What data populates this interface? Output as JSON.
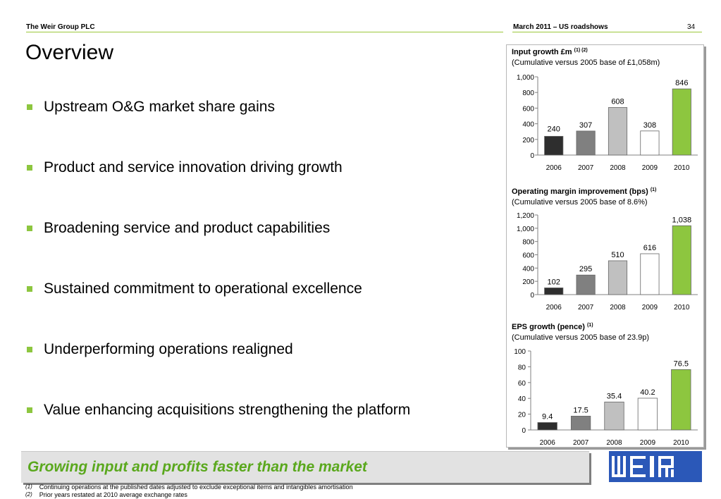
{
  "header": {
    "company": "The Weir Group PLC",
    "event": "March 2011 – US roadshows",
    "page_number": "34"
  },
  "title": "Overview",
  "bullets": [
    "Upstream O&G market share gains",
    "Product and service innovation driving growth",
    "Broadening service and product capabilities",
    "Sustained commitment to operational excellence",
    "Underperforming operations realigned",
    "Value enhancing acquisitions strengthening the platform"
  ],
  "banner": "Growing input and profits faster than the market",
  "footnotes": [
    {
      "marker": "(1)",
      "text": "Continuing operations at the published dates adjusted to exclude exceptional items and intangibles amortisation"
    },
    {
      "marker": "(2)",
      "text": "Prior years restated at 2010 average exchange rates"
    }
  ],
  "colors": {
    "accent_green": "#8dc63f",
    "banner_text": "#5aa81d",
    "logo_blue": "#2b58b8",
    "bar_2006": "#2e2e2e",
    "bar_2007": "#808080",
    "bar_2008": "#c0c0c0",
    "bar_2009": "#ffffff",
    "bar_2010": "#8dc63f"
  },
  "logo": {
    "icon": "weir-logo-icon"
  },
  "chart_data": [
    {
      "type": "bar",
      "title": "Input growth £m",
      "title_sup": "(1) (2)",
      "subtitle": "(Cumulative versus 2005 base of £1,058m)",
      "categories": [
        "2006",
        "2007",
        "2008",
        "2009",
        "2010"
      ],
      "values": [
        240,
        307,
        608,
        308,
        846
      ],
      "value_labels": [
        "240",
        "307",
        "608",
        "308",
        "846"
      ],
      "ylim": [
        0,
        1000
      ],
      "yticks": [
        0,
        200,
        400,
        600,
        800,
        1000
      ],
      "ytick_labels": [
        "0",
        "200",
        "400",
        "600",
        "800",
        "1,000"
      ],
      "xlabel": "",
      "ylabel": "",
      "grid": false
    },
    {
      "type": "bar",
      "title": "Operating margin improvement (bps)",
      "title_sup": "(1)",
      "subtitle": "(Cumulative versus 2005 base of 8.6%)",
      "categories": [
        "2006",
        "2007",
        "2008",
        "2009",
        "2010"
      ],
      "values": [
        102,
        295,
        510,
        616,
        1038
      ],
      "value_labels": [
        "102",
        "295",
        "510",
        "616",
        "1,038"
      ],
      "ylim": [
        0,
        1200
      ],
      "yticks": [
        0,
        200,
        400,
        600,
        800,
        1000,
        1200
      ],
      "ytick_labels": [
        "0",
        "200",
        "400",
        "600",
        "800",
        "1,000",
        "1,200"
      ],
      "xlabel": "",
      "ylabel": "",
      "grid": false
    },
    {
      "type": "bar",
      "title": "EPS growth (pence)",
      "title_sup": "(1)",
      "subtitle": "(Cumulative versus 2005 base of 23.9p)",
      "categories": [
        "2006",
        "2007",
        "2008",
        "2009",
        "2010"
      ],
      "values": [
        9.4,
        17.5,
        35.4,
        40.2,
        76.5
      ],
      "value_labels": [
        "9.4",
        "17.5",
        "35.4",
        "40.2",
        "76.5"
      ],
      "ylim": [
        0,
        100
      ],
      "yticks": [
        0,
        20,
        40,
        60,
        80,
        100
      ],
      "ytick_labels": [
        "0",
        "20",
        "40",
        "60",
        "80",
        "100"
      ],
      "xlabel": "",
      "ylabel": "",
      "grid": false
    }
  ]
}
